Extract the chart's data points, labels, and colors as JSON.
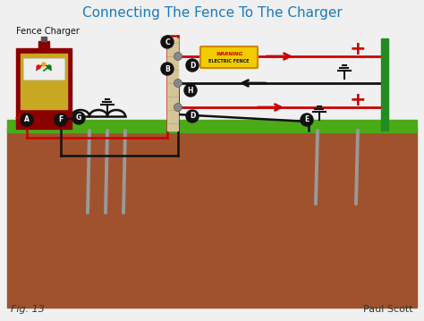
{
  "title": "Connecting The Fence To The Charger",
  "title_color": "#1a7abd",
  "title_fontsize": 11,
  "bg_color": "#f0f0f0",
  "fig_label": "Fig. 13",
  "author": "Paul Scott",
  "fence_charger_label": "Fence Charger",
  "grass_color": "#4aaa18",
  "soil_color": "#a0522d",
  "soil_dark": "#8B4513",
  "fence_post_color": "#d4c49a",
  "fence_post_dark": "#b8a870",
  "green_post_color": "#228b22",
  "charger_body_color": "#8B0000",
  "charger_panel_color": "#c8a820",
  "wire_red": "#cc0000",
  "wire_black": "#111111",
  "warning_sign_color": "#f0cc00",
  "warning_border_color": "#cc8800",
  "plus_color": "#cc0000",
  "ground_rod_color": "#999999",
  "insulator_color": "#888888",
  "note_color": "#333333"
}
